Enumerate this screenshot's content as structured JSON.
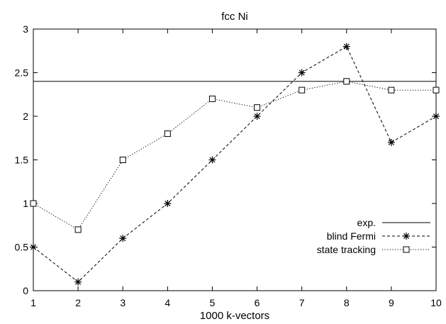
{
  "chart_data": {
    "type": "line",
    "title": "fcc Ni",
    "xlabel": "1000 k-vectors",
    "ylabel": "",
    "xlim": [
      1,
      10
    ],
    "ylim": [
      0,
      3
    ],
    "x_ticks": [
      "1",
      "2",
      "3",
      "4",
      "5",
      "6",
      "7",
      "8",
      "9",
      "10"
    ],
    "y_ticks": [
      "0",
      "0.5",
      "1",
      "1.5",
      "2",
      "2.5",
      "3"
    ],
    "grid": false,
    "legend_position": "bottom-right",
    "series": [
      {
        "name": "exp.",
        "style": "solid",
        "marker": "none",
        "x": [
          1,
          10
        ],
        "y": [
          2.4,
          2.4
        ]
      },
      {
        "name": "blind Fermi",
        "style": "dashed",
        "marker": "star",
        "x": [
          1,
          2,
          3,
          4,
          5,
          6,
          7,
          8,
          9,
          10
        ],
        "y": [
          0.5,
          0.1,
          0.6,
          1.0,
          1.5,
          2.0,
          2.5,
          2.8,
          1.7,
          2.0
        ]
      },
      {
        "name": "state tracking",
        "style": "dotted",
        "marker": "square",
        "x": [
          1,
          2,
          3,
          4,
          5,
          6,
          7,
          8,
          9,
          10
        ],
        "y": [
          1.0,
          0.7,
          1.5,
          1.8,
          2.2,
          2.1,
          2.3,
          2.4,
          2.3,
          2.3
        ]
      }
    ]
  }
}
